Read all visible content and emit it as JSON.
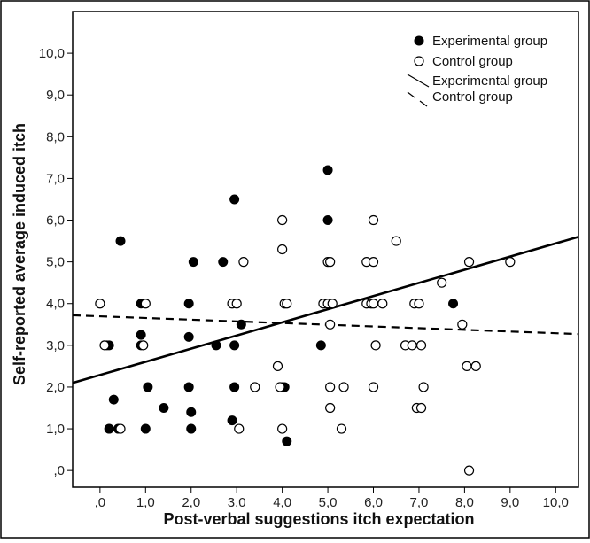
{
  "chart_data": {
    "type": "scatter",
    "title": "",
    "xlabel": "Post-verbal suggestions itch expectation",
    "ylabel": "Self-reported average induced itch",
    "xlim": [
      -0.6,
      10.5
    ],
    "ylim": [
      -0.4,
      11.0
    ],
    "x_ticks": [
      0,
      1,
      2,
      3,
      4,
      5,
      6,
      7,
      8,
      9,
      10
    ],
    "x_tick_labels": [
      ",0",
      "1,0",
      "2,0",
      "3,0",
      "4,0",
      "5,0",
      "6,0",
      "7,0",
      "8,0",
      "9,0",
      "10,0"
    ],
    "y_ticks": [
      0,
      1,
      2,
      3,
      4,
      5,
      6,
      7,
      8,
      9,
      10
    ],
    "y_tick_labels": [
      ",0",
      "1,0",
      "2,0",
      "3,0",
      "4,0",
      "5,0",
      "6,0",
      "7,0",
      "8,0",
      "9,0",
      "10,0"
    ],
    "grid": false,
    "legend_position": "top-right",
    "series": [
      {
        "name": "Experimental group",
        "marker": "filled-circle",
        "color": "#000000",
        "points": [
          [
            0.15,
            3.0
          ],
          [
            0.2,
            3.0
          ],
          [
            0.2,
            1.0
          ],
          [
            0.3,
            1.7
          ],
          [
            0.4,
            1.0
          ],
          [
            0.45,
            5.5
          ],
          [
            0.9,
            4.0
          ],
          [
            0.9,
            3.25
          ],
          [
            0.9,
            3.0
          ],
          [
            1.0,
            1.0
          ],
          [
            1.05,
            2.0
          ],
          [
            1.4,
            1.5
          ],
          [
            1.95,
            4.0
          ],
          [
            1.95,
            3.2
          ],
          [
            1.95,
            2.0
          ],
          [
            2.0,
            1.4
          ],
          [
            2.0,
            1.0
          ],
          [
            2.05,
            5.0
          ],
          [
            2.55,
            3.0
          ],
          [
            2.7,
            5.0
          ],
          [
            2.9,
            1.2
          ],
          [
            2.95,
            6.5
          ],
          [
            2.95,
            2.0
          ],
          [
            2.95,
            3.0
          ],
          [
            3.1,
            3.5
          ],
          [
            4.0,
            2.0
          ],
          [
            4.05,
            2.0
          ],
          [
            4.1,
            0.7
          ],
          [
            4.85,
            3.0
          ],
          [
            5.0,
            7.2
          ],
          [
            5.0,
            6.0
          ],
          [
            7.75,
            4.0
          ]
        ]
      },
      {
        "name": "Control group",
        "marker": "open-circle",
        "color": "#000000",
        "points": [
          [
            0.0,
            4.0
          ],
          [
            0.1,
            3.0
          ],
          [
            0.45,
            1.0
          ],
          [
            0.95,
            3.0
          ],
          [
            1.0,
            4.0
          ],
          [
            2.9,
            4.0
          ],
          [
            3.0,
            4.0
          ],
          [
            3.05,
            1.0
          ],
          [
            3.15,
            5.0
          ],
          [
            3.4,
            2.0
          ],
          [
            3.9,
            2.5
          ],
          [
            3.95,
            2.0
          ],
          [
            4.0,
            6.0
          ],
          [
            4.0,
            5.3
          ],
          [
            4.0,
            1.0
          ],
          [
            4.05,
            4.0
          ],
          [
            4.1,
            4.0
          ],
          [
            4.9,
            4.0
          ],
          [
            5.0,
            5.0
          ],
          [
            5.0,
            4.0
          ],
          [
            5.05,
            5.0
          ],
          [
            5.05,
            3.5
          ],
          [
            5.05,
            2.0
          ],
          [
            5.05,
            1.5
          ],
          [
            5.1,
            4.0
          ],
          [
            5.3,
            1.0
          ],
          [
            5.35,
            2.0
          ],
          [
            5.85,
            5.0
          ],
          [
            5.85,
            4.0
          ],
          [
            5.95,
            4.0
          ],
          [
            6.0,
            6.0
          ],
          [
            6.0,
            5.0
          ],
          [
            6.0,
            4.0
          ],
          [
            6.0,
            2.0
          ],
          [
            6.05,
            3.0
          ],
          [
            6.2,
            4.0
          ],
          [
            6.5,
            5.5
          ],
          [
            6.7,
            3.0
          ],
          [
            6.85,
            3.0
          ],
          [
            6.9,
            4.0
          ],
          [
            6.95,
            1.5
          ],
          [
            7.0,
            4.0
          ],
          [
            7.05,
            3.0
          ],
          [
            7.05,
            1.5
          ],
          [
            7.1,
            2.0
          ],
          [
            7.5,
            4.5
          ],
          [
            7.95,
            3.5
          ],
          [
            8.05,
            2.5
          ],
          [
            8.1,
            5.0
          ],
          [
            8.1,
            0.0
          ],
          [
            8.25,
            2.5
          ],
          [
            9.0,
            5.0
          ]
        ]
      }
    ],
    "fit_lines": [
      {
        "name": "Experimental group",
        "style": "solid",
        "x": [
          -0.6,
          10.5
        ],
        "y": [
          2.1,
          5.6
        ]
      },
      {
        "name": "Control group",
        "style": "dashed",
        "x": [
          -0.6,
          10.5
        ],
        "y": [
          3.72,
          3.27
        ]
      }
    ]
  }
}
